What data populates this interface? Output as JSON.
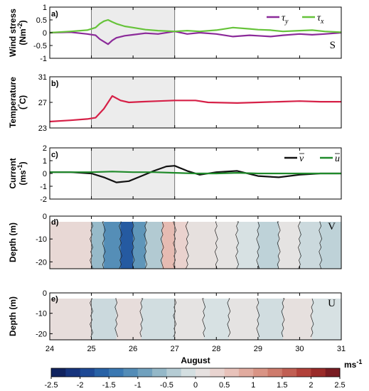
{
  "figure": {
    "x_axis_label": "August",
    "x_tick_labels": [
      "24",
      "25",
      "26",
      "27",
      "28",
      "29",
      "30",
      "31"
    ],
    "colorbar_unit": "ms",
    "colorbar_unit_exp": "-1",
    "colorbar_tick_labels": [
      "-2.5",
      "-2",
      "-1.5",
      "-1",
      "-0.5",
      "0",
      "0.5",
      "1",
      "1.5",
      "2",
      "2.5"
    ],
    "colors": {
      "tau_y": "#8b2a99",
      "tau_x": "#66c33a",
      "temperature": "#d62047",
      "v_bar": "#111111",
      "u_bar": "#1f8a2a",
      "shade": "#ececec"
    }
  },
  "chart_data": [
    {
      "type": "line",
      "panel_label": "a)",
      "ylabel": "Wind stress",
      "ylabel_unit": "(Nm",
      "ylabel_unit_exp": "-2",
      "ylabel_unit_close": ")",
      "ylim": [
        -1,
        1
      ],
      "yticks": [
        "-1",
        "-0.5",
        "0",
        "0.5",
        "1"
      ],
      "annotation": "S",
      "shaded_range": [
        25,
        27
      ],
      "series": [
        {
          "name": "τ",
          "sub": "y",
          "x": [
            24,
            24.5,
            24.9,
            25.1,
            25.2,
            25.3,
            25.4,
            25.5,
            25.6,
            25.8,
            26.0,
            26.3,
            26.6,
            27.0,
            27.3,
            27.6,
            28.0,
            28.4,
            28.8,
            29.0,
            29.3,
            29.6,
            30.0,
            30.3,
            30.6,
            31.0
          ],
          "y": [
            0,
            0.02,
            -0.05,
            -0.1,
            -0.25,
            -0.35,
            -0.45,
            -0.3,
            -0.2,
            -0.12,
            -0.08,
            -0.02,
            -0.05,
            0.05,
            -0.05,
            0,
            -0.05,
            -0.15,
            -0.1,
            -0.12,
            -0.15,
            -0.1,
            -0.05,
            -0.08,
            -0.05,
            0
          ]
        },
        {
          "name": "τ",
          "sub": "x",
          "x": [
            24,
            24.5,
            24.9,
            25.1,
            25.2,
            25.3,
            25.4,
            25.5,
            25.6,
            25.8,
            26.0,
            26.3,
            26.6,
            27.0,
            27.3,
            27.6,
            28.0,
            28.4,
            28.8,
            29.0,
            29.3,
            29.6,
            30.0,
            30.3,
            30.6,
            31.0
          ],
          "y": [
            0,
            0.05,
            0.1,
            0.2,
            0.35,
            0.45,
            0.5,
            0.42,
            0.35,
            0.25,
            0.2,
            0.12,
            0.08,
            0.05,
            0.08,
            0.05,
            0.1,
            0.2,
            0.15,
            0.12,
            0.1,
            0.05,
            0.08,
            0.1,
            0.05,
            0.02
          ]
        }
      ]
    },
    {
      "type": "line",
      "panel_label": "b)",
      "ylabel": "Temperature",
      "ylabel_unit": "(",
      "ylabel_unit_sup": "°",
      "ylabel_unit_main": "C)",
      "ylim": [
        23,
        31
      ],
      "yticks": [
        "23",
        "27",
        "31"
      ],
      "shaded_range": [
        25,
        27
      ],
      "series": [
        {
          "name": "",
          "x": [
            24,
            24.5,
            24.9,
            25.1,
            25.3,
            25.5,
            25.7,
            25.9,
            26.2,
            26.6,
            27.0,
            27.5,
            27.8,
            28.5,
            29.0,
            29.5,
            30.0,
            30.5,
            31.0
          ],
          "y": [
            24.0,
            24.2,
            24.4,
            24.6,
            26.0,
            28.0,
            27.3,
            27.0,
            27.1,
            27.2,
            27.3,
            27.3,
            27.0,
            26.9,
            27.0,
            27.1,
            27.2,
            27.1,
            27.1
          ]
        }
      ]
    },
    {
      "type": "line",
      "panel_label": "c)",
      "ylabel": "Current",
      "ylabel_unit": "(ms",
      "ylabel_unit_exp": "-1",
      "ylabel_unit_close": ")",
      "ylim": [
        -2,
        2
      ],
      "yticks": [
        "-2",
        "-1",
        "0",
        "1",
        "2"
      ],
      "shaded_range": [
        25,
        27
      ],
      "series": [
        {
          "name": "v",
          "bar": true,
          "x": [
            24,
            24.5,
            25.0,
            25.3,
            25.6,
            25.9,
            26.2,
            26.5,
            26.8,
            27.0,
            27.3,
            27.6,
            28.0,
            28.5,
            29.0,
            29.5,
            30.0,
            30.5,
            31.0
          ],
          "y": [
            0.1,
            0.1,
            0.0,
            -0.3,
            -0.7,
            -0.6,
            -0.2,
            0.2,
            0.55,
            0.6,
            0.2,
            -0.1,
            0.1,
            0.2,
            -0.2,
            -0.3,
            -0.1,
            0.0,
            0.0
          ]
        },
        {
          "name": "u",
          "bar": true,
          "x": [
            24,
            24.5,
            25.0,
            25.5,
            26.0,
            26.5,
            27.0,
            27.5,
            28.0,
            28.5,
            29.0,
            29.5,
            30.0,
            30.5,
            31.0
          ],
          "y": [
            0.1,
            0.1,
            0.1,
            0.15,
            0.1,
            0.1,
            0.05,
            0.0,
            0.0,
            0.05,
            0.0,
            0.0,
            0.0,
            0.0,
            0.0
          ]
        }
      ]
    },
    {
      "type": "heatmap",
      "panel_label": "d)",
      "ylabel": "Depth (m)",
      "ylim": [
        -23,
        0
      ],
      "yticks": [
        "0",
        "-10",
        "-20"
      ],
      "annotation": "V",
      "shaded_range": [
        25,
        27
      ],
      "bands": [
        {
          "x0": 24.0,
          "x1": 25.0,
          "value": 0.3
        },
        {
          "x0": 25.0,
          "x1": 25.3,
          "value": -0.6
        },
        {
          "x0": 25.3,
          "x1": 25.7,
          "value": -1.1
        },
        {
          "x0": 25.7,
          "x1": 26.0,
          "value": -1.7
        },
        {
          "x0": 26.0,
          "x1": 26.3,
          "value": -1.0
        },
        {
          "x0": 26.3,
          "x1": 26.7,
          "value": -0.4
        },
        {
          "x0": 26.7,
          "x1": 27.0,
          "value": 0.7
        },
        {
          "x0": 27.0,
          "x1": 27.3,
          "value": 0.4
        },
        {
          "x0": 27.3,
          "x1": 28.0,
          "value": 0.15
        },
        {
          "x0": 28.0,
          "x1": 28.5,
          "value": 0.1
        },
        {
          "x0": 28.5,
          "x1": 29.0,
          "value": -0.1
        },
        {
          "x0": 29.0,
          "x1": 29.5,
          "value": -0.3
        },
        {
          "x0": 29.5,
          "x1": 30.0,
          "value": 0.1
        },
        {
          "x0": 30.0,
          "x1": 30.5,
          "value": -0.2
        },
        {
          "x0": 30.5,
          "x1": 31.0,
          "value": -0.3
        }
      ]
    },
    {
      "type": "heatmap",
      "panel_label": "e)",
      "ylabel": "Depth (m)",
      "ylim": [
        -23,
        0
      ],
      "yticks": [
        "0",
        "-10",
        "-20"
      ],
      "annotation": "U",
      "shaded_range": [
        25,
        27
      ],
      "bands": [
        {
          "x0": 24.0,
          "x1": 25.0,
          "value": 0.2
        },
        {
          "x0": 25.0,
          "x1": 25.6,
          "value": -0.2
        },
        {
          "x0": 25.6,
          "x1": 26.2,
          "value": 0.2
        },
        {
          "x0": 26.2,
          "x1": 27.0,
          "value": -0.15
        },
        {
          "x0": 27.0,
          "x1": 27.7,
          "value": 0.1
        },
        {
          "x0": 27.7,
          "x1": 28.3,
          "value": -0.1
        },
        {
          "x0": 28.3,
          "x1": 29.0,
          "value": 0.1
        },
        {
          "x0": 29.0,
          "x1": 29.6,
          "value": -0.15
        },
        {
          "x0": 29.6,
          "x1": 30.3,
          "value": 0.15
        },
        {
          "x0": 30.3,
          "x1": 31.0,
          "value": -0.1
        }
      ]
    }
  ]
}
